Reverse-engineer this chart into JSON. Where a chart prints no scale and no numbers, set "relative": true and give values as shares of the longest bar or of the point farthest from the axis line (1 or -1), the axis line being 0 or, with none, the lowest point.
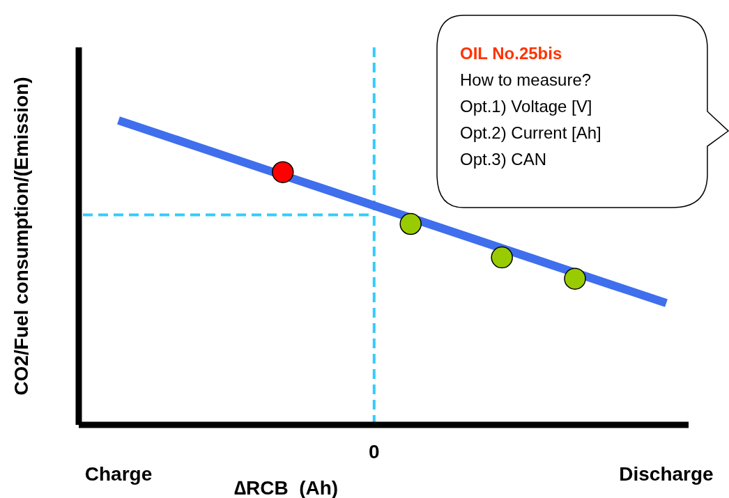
{
  "chart_data": {
    "type": "line",
    "relative": true,
    "xlabel": "∆RCB  (Ah)",
    "ylabel": "CO2/Fuel consumption/(Emission)",
    "categories": [
      "Charge",
      null,
      null,
      null,
      null,
      null,
      null,
      null,
      null,
      null,
      null,
      null,
      null,
      null,
      "0",
      null,
      null,
      null,
      null,
      null,
      null,
      null,
      null,
      null,
      null,
      null,
      null,
      null,
      null,
      null,
      "Discharge"
    ],
    "series": [
      {
        "color": "#3f6fec",
        "values": [
          1,
          0.98,
          0.96,
          0.94,
          0.92,
          0.9,
          0.88,
          0.86,
          0.84,
          null,
          0.8,
          0.78,
          0.76,
          0.74,
          0.72,
          0.7,
          null,
          0.66,
          0.64,
          0.62,
          0.6,
          null,
          0.56,
          0.54,
          0.52,
          null,
          0.48,
          0.46,
          0.44,
          0.42,
          0.4
        ]
      },
      {
        "type": "scatter",
        "color": "#ff0000",
        "marker": "circle",
        "values": [
          null,
          null,
          null,
          null,
          null,
          null,
          null,
          null,
          null,
          0.83,
          null,
          null,
          null,
          null,
          null,
          null,
          null,
          null,
          null,
          null,
          null,
          null,
          null,
          null,
          null,
          null,
          null,
          null,
          null,
          null,
          null
        ]
      },
      {
        "type": "scatter",
        "color": "#99cc00",
        "marker": "circle",
        "values": [
          null,
          null,
          null,
          null,
          null,
          null,
          null,
          null,
          null,
          null,
          null,
          null,
          null,
          null,
          null,
          null,
          0.66,
          null,
          null,
          null,
          null,
          0.55,
          null,
          null,
          null,
          0.48,
          null,
          null,
          null,
          null,
          null
        ]
      }
    ],
    "ref_lines": [
      {
        "axis": "x",
        "value": "0",
        "color": "#33ccff",
        "line_style": "dashed"
      },
      {
        "axis": "y",
        "value": 0.69,
        "color": "#33ccff",
        "line_style": "dashed"
      }
    ],
    "annotations": [
      "OIL No.25bis",
      "How to measure?",
      "Opt.1) Voltage [V]",
      "Opt.2) Current [Ah]",
      "Opt.3) CAN"
    ]
  }
}
